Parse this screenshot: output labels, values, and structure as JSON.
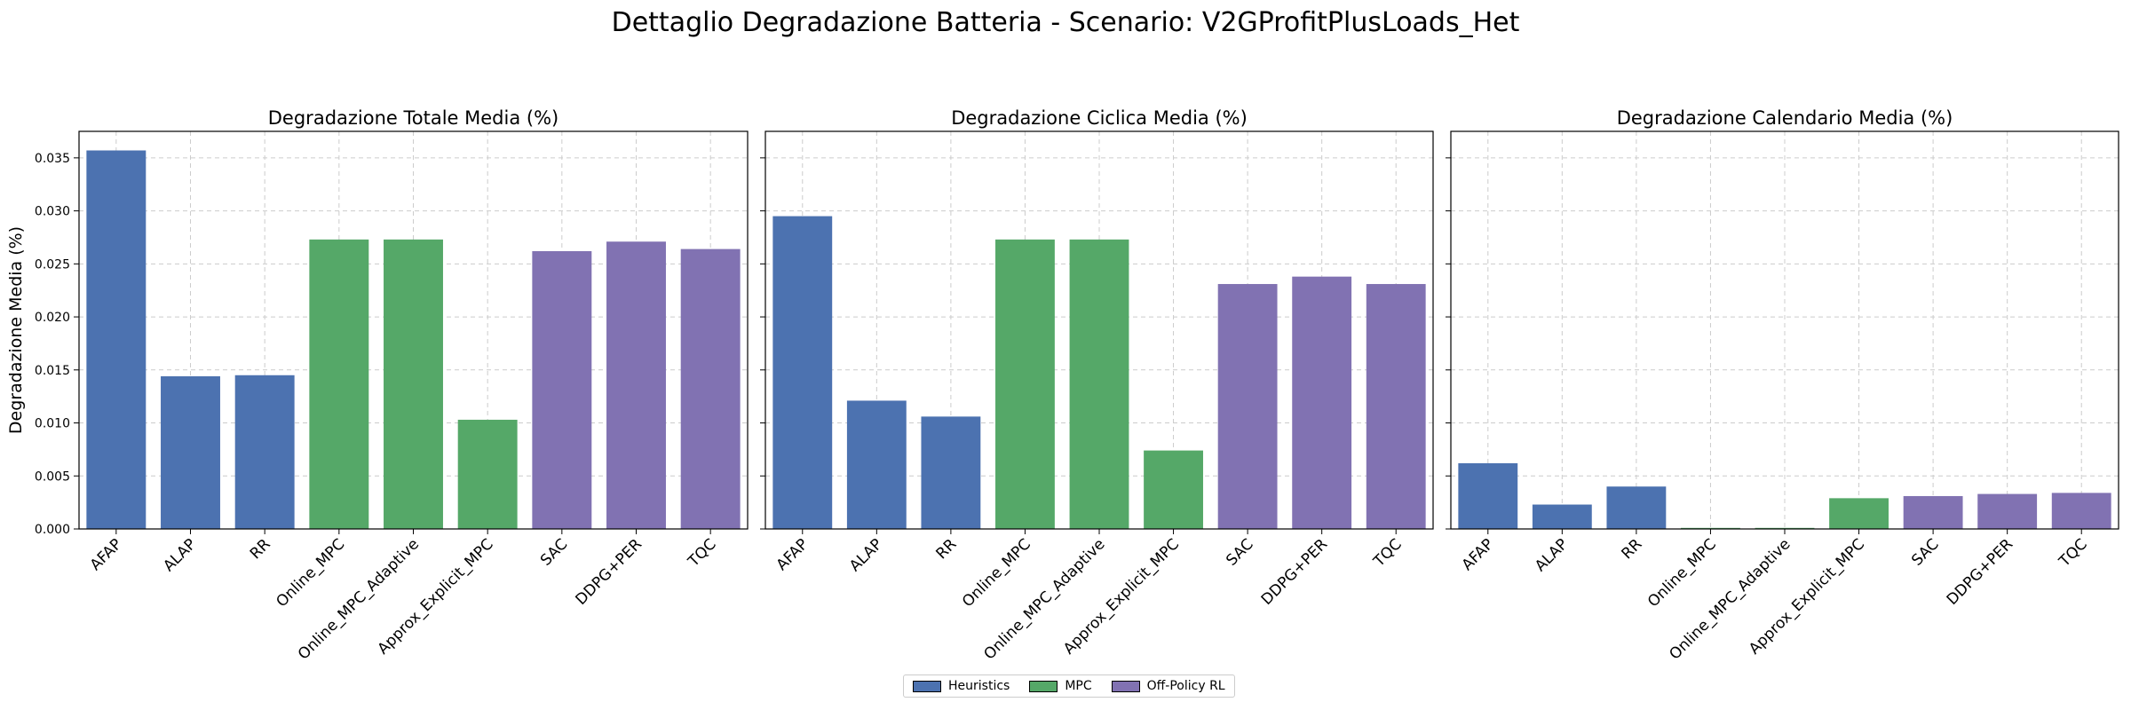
{
  "suptitle": "Dettaglio Degradazione Batteria - Scenario: V2GProfitPlusLoads_Het",
  "colors": {
    "Heuristics": "#4c72b0",
    "MPC": "#55a868",
    "Off-Policy RL": "#8172b2"
  },
  "legend": [
    {
      "label": "Heuristics",
      "color": "#4c72b0"
    },
    {
      "label": "MPC",
      "color": "#55a868"
    },
    {
      "label": "Off-Policy RL",
      "color": "#8172b2"
    }
  ],
  "chart_data": [
    {
      "type": "bar",
      "title": "Degradazione Totale Media (%)",
      "ylabel": "Degradazione Media (%)",
      "ylim": [
        0,
        0.0375
      ],
      "yticks": [
        "0.000",
        "0.005",
        "0.010",
        "0.015",
        "0.020",
        "0.025",
        "0.030",
        "0.035"
      ],
      "grid": true,
      "categories": [
        "AFAP",
        "ALAP",
        "RR",
        "Online_MPC",
        "Online_MPC_Adaptive",
        "Approx_Explicit_MPC",
        "SAC",
        "DDPG+PER",
        "TQC"
      ],
      "groups": [
        "Heuristics",
        "Heuristics",
        "Heuristics",
        "MPC",
        "MPC",
        "MPC",
        "Off-Policy RL",
        "Off-Policy RL",
        "Off-Policy RL"
      ],
      "values": [
        0.0357,
        0.0144,
        0.0145,
        0.0273,
        0.0273,
        0.0103,
        0.0262,
        0.0271,
        0.0264
      ]
    },
    {
      "type": "bar",
      "title": "Degradazione Ciclica Media (%)",
      "ylabel": "",
      "ylim": [
        0,
        0.0375
      ],
      "yticks": [
        "0.000",
        "0.005",
        "0.010",
        "0.015",
        "0.020",
        "0.025",
        "0.030",
        "0.035"
      ],
      "grid": true,
      "categories": [
        "AFAP",
        "ALAP",
        "RR",
        "Online_MPC",
        "Online_MPC_Adaptive",
        "Approx_Explicit_MPC",
        "SAC",
        "DDPG+PER",
        "TQC"
      ],
      "groups": [
        "Heuristics",
        "Heuristics",
        "Heuristics",
        "MPC",
        "MPC",
        "MPC",
        "Off-Policy RL",
        "Off-Policy RL",
        "Off-Policy RL"
      ],
      "values": [
        0.0295,
        0.0121,
        0.0106,
        0.0273,
        0.0273,
        0.0074,
        0.0231,
        0.0238,
        0.0231
      ]
    },
    {
      "type": "bar",
      "title": "Degradazione Calendario Media (%)",
      "ylabel": "",
      "ylim": [
        0,
        0.0375
      ],
      "yticks": [
        "0.000",
        "0.005",
        "0.010",
        "0.015",
        "0.020",
        "0.025",
        "0.030",
        "0.035"
      ],
      "grid": true,
      "categories": [
        "AFAP",
        "ALAP",
        "RR",
        "Online_MPC",
        "Online_MPC_Adaptive",
        "Approx_Explicit_MPC",
        "SAC",
        "DDPG+PER",
        "TQC"
      ],
      "groups": [
        "Heuristics",
        "Heuristics",
        "Heuristics",
        "MPC",
        "MPC",
        "MPC",
        "Off-Policy RL",
        "Off-Policy RL",
        "Off-Policy RL"
      ],
      "values": [
        0.0062,
        0.0023,
        0.004,
        0.0001,
        0.0001,
        0.0029,
        0.0031,
        0.0033,
        0.0034
      ]
    }
  ]
}
